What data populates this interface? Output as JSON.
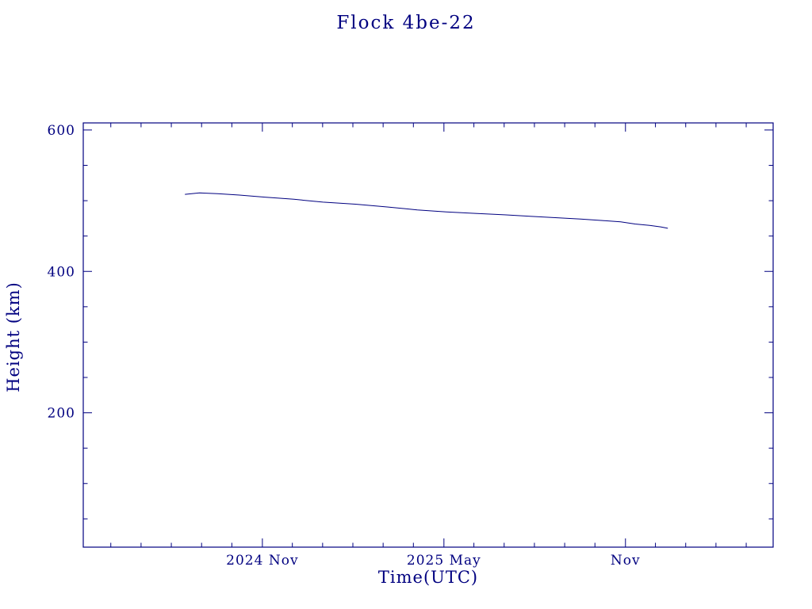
{
  "title": "Flock 4be-22",
  "colors": {
    "plot_color": "#000080",
    "background": "#ffffff"
  },
  "chart_data": {
    "type": "line",
    "title": "Flock 4be-22",
    "xlabel": "Time(UTC)",
    "ylabel": "Height (km)",
    "xlim": [
      2024.34,
      2026.24
    ],
    "ylim": [
      10,
      610
    ],
    "grid": false,
    "legend": "none",
    "x_ticks": [
      {
        "value": 2024.8333,
        "label": "2024 Nov"
      },
      {
        "value": 2025.3333,
        "label": "2025 May"
      },
      {
        "value": 2025.8333,
        "label": "Nov"
      }
    ],
    "x_minor_step_years": 0.0833333,
    "y_ticks": [
      {
        "value": 200,
        "label": "200"
      },
      {
        "value": 400,
        "label": "400"
      },
      {
        "value": 600,
        "label": "600"
      }
    ],
    "y_minor_step": 50,
    "series": [
      {
        "name": "height",
        "x": [
          2024.62,
          2024.66,
          2024.71,
          2024.77,
          2024.84,
          2024.92,
          2025.0,
          2025.09,
          2025.18,
          2025.26,
          2025.34,
          2025.42,
          2025.5,
          2025.57,
          2025.64,
          2025.71,
          2025.77,
          2025.82,
          2025.86,
          2025.9,
          2025.93,
          2025.95
        ],
        "y": [
          509,
          511,
          510,
          508,
          505,
          502,
          498,
          495,
          491,
          487,
          484,
          482,
          480,
          478,
          476,
          474,
          472,
          470,
          467,
          465,
          463,
          461
        ]
      }
    ]
  }
}
